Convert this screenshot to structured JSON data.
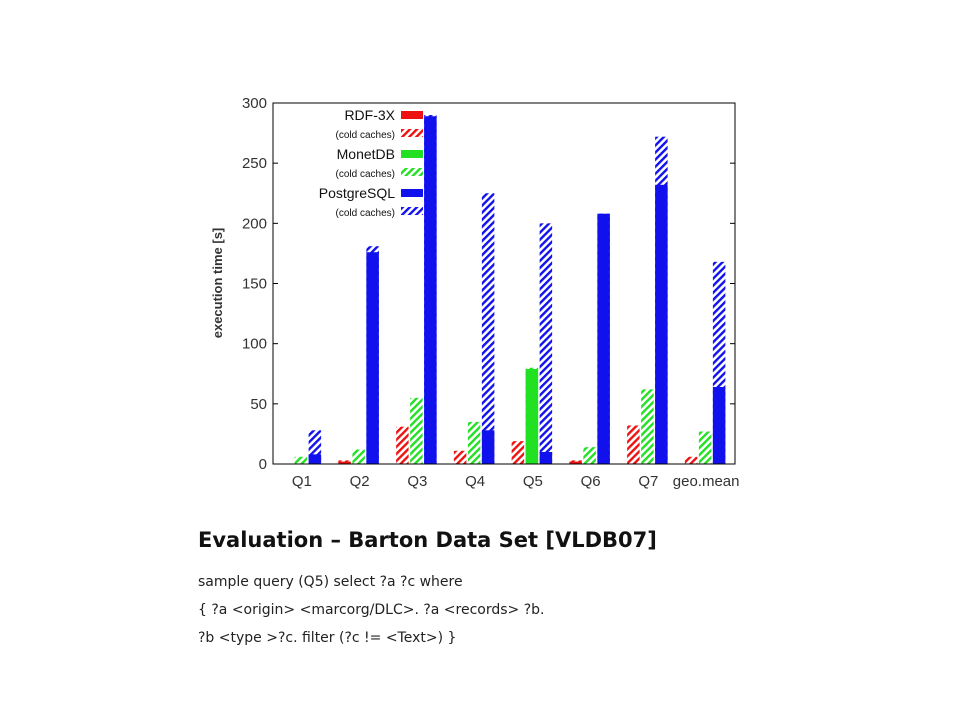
{
  "chart_data": {
    "type": "bar",
    "categories": [
      "Q1",
      "Q2",
      "Q3",
      "Q4",
      "Q5",
      "Q6",
      "Q7",
      "geo.mean"
    ],
    "ylabel": "execution time [s]",
    "ylim": [
      0,
      300
    ],
    "yticks": [
      0,
      50,
      100,
      150,
      200,
      250,
      300
    ],
    "grid": false,
    "legend_position": "top-left",
    "series": [
      {
        "name": "RDF-3X",
        "color": "#ee1111",
        "warm": [
          0,
          2,
          0,
          0,
          0,
          2,
          0,
          0
        ],
        "cold": [
          0,
          3,
          31,
          11,
          19,
          3,
          32,
          6
        ]
      },
      {
        "name": "MonetDB",
        "color": "#22e022",
        "warm": [
          0,
          0,
          0,
          0,
          79,
          0,
          0,
          0
        ],
        "cold": [
          6,
          12,
          55,
          35,
          80,
          14,
          62,
          27
        ]
      },
      {
        "name": "PostgreSQL",
        "color": "#1111ee",
        "warm": [
          8,
          176,
          289,
          28,
          10,
          208,
          232,
          64
        ],
        "cold": [
          28,
          181,
          290,
          225,
          200,
          208,
          272,
          168
        ]
      }
    ],
    "cold_label": "(cold caches)"
  },
  "caption": {
    "title": "Evaluation – Barton Data Set [VLDB07]",
    "lines": [
      "sample query (Q5) select ?a ?c where",
      "{ ?a <origin> <marcorg/DLC>. ?a <records> ?b.",
      "?b <type >?c. filter (?c != <Text>) }"
    ]
  }
}
